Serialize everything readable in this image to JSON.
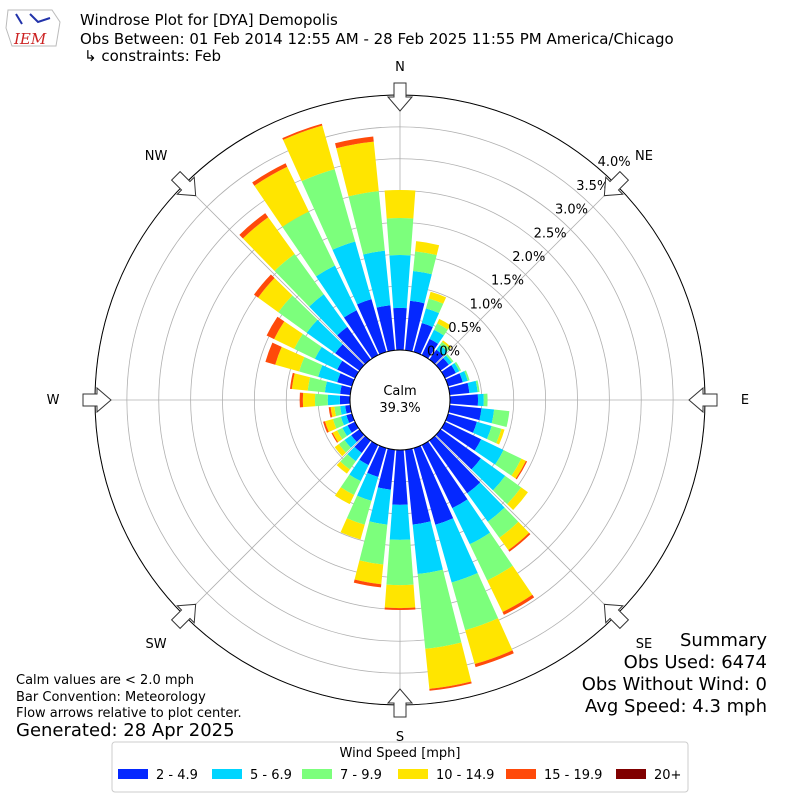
{
  "chart_data": {
    "type": "windrose",
    "logo": "IEM",
    "title": "Windrose Plot for [DYA] Demopolis",
    "subtitle": "Obs Between: 01 Feb 2014 12:55 AM - 28 Feb 2025 11:55 PM America/Chicago",
    "constraints": "↳ constraints: Feb",
    "compass": [
      "N",
      "NE",
      "E",
      "SE",
      "S",
      "SW",
      "W",
      "NW"
    ],
    "calm": {
      "label": "Calm",
      "value": 39.3,
      "value_label": "39.3%"
    },
    "rlim": [
      0,
      4
    ],
    "rticks": [
      {
        "value": 0,
        "label": "0.0%"
      },
      {
        "value": 0.5,
        "label": "0.5%"
      },
      {
        "value": 1,
        "label": "1.0%"
      },
      {
        "value": 1.5,
        "label": "1.5%"
      },
      {
        "value": 2,
        "label": "2.0%"
      },
      {
        "value": 2.5,
        "label": "2.5%"
      },
      {
        "value": 3,
        "label": "3.0%"
      },
      {
        "value": 3.5,
        "label": "3.5%"
      },
      {
        "value": 4,
        "label": "4.0%"
      }
    ],
    "x": [
      10,
      20,
      30,
      40,
      50,
      60,
      70,
      80,
      90,
      100,
      110,
      120,
      130,
      140,
      150,
      160,
      170,
      180,
      190,
      200,
      210,
      220,
      230,
      240,
      250,
      260,
      270,
      280,
      290,
      300,
      310,
      320,
      330,
      340,
      350,
      360
    ],
    "legend_title": "Wind Speed [mph]",
    "series": [
      {
        "name": "2 - 4.9",
        "color": "#0528ff",
        "values": [
          0.78,
          0.47,
          0.28,
          0.19,
          0.16,
          0.19,
          0.24,
          0.31,
          0.44,
          0.5,
          0.47,
          0.63,
          0.78,
          1.02,
          1.1,
          1.25,
          1.18,
          0.86,
          0.63,
          0.47,
          0.35,
          0.24,
          0.16,
          0.13,
          0.09,
          0.08,
          0.16,
          0.16,
          0.24,
          0.31,
          0.47,
          0.63,
          0.78,
          0.86,
          0.71,
          0.66
        ]
      },
      {
        "name": "5 - 6.9",
        "color": "#00d5ff",
        "values": [
          0.47,
          0.24,
          0.16,
          0.09,
          0.06,
          0.06,
          0.08,
          0.13,
          0.09,
          0.2,
          0.24,
          0.39,
          0.47,
          0.55,
          0.63,
          0.94,
          0.78,
          0.55,
          0.55,
          0.39,
          0.28,
          0.16,
          0.13,
          0.09,
          0.09,
          0.08,
          0.19,
          0.24,
          0.31,
          0.39,
          0.55,
          0.63,
          0.78,
          0.94,
          0.86,
          0.83
        ]
      },
      {
        "name": "7 - 9.9",
        "color": "#7cff7c",
        "values": [
          0.31,
          0.16,
          0.11,
          0.06,
          0.03,
          0.03,
          0.03,
          0.03,
          0.06,
          0.24,
          0.16,
          0.31,
          0.31,
          0.31,
          0.63,
          0.78,
          1.18,
          0.71,
          0.63,
          0.39,
          0.24,
          0.16,
          0.11,
          0.09,
          0.13,
          0.09,
          0.2,
          0.27,
          0.31,
          0.36,
          0.55,
          0.78,
          0.94,
          1.18,
          0.94,
          0.58
        ]
      },
      {
        "name": "10 - 14.9",
        "color": "#ffe500",
        "values": [
          0.16,
          0.11,
          0.08,
          0.03,
          0,
          0,
          0,
          0,
          0,
          0,
          0.05,
          0.08,
          0.13,
          0.24,
          0.55,
          0.55,
          0.63,
          0.36,
          0.31,
          0.24,
          0.16,
          0.08,
          0.08,
          0.08,
          0.13,
          0.06,
          0.19,
          0.25,
          0.39,
          0.35,
          0.39,
          0.71,
          0.78,
          0.71,
          0.78,
          0.44
        ]
      },
      {
        "name": "15 - 19.9",
        "color": "#ff4a0a",
        "values": [
          0,
          0,
          0,
          0,
          0,
          0,
          0,
          0,
          0,
          0,
          0,
          0.02,
          0,
          0.03,
          0.05,
          0.05,
          0.03,
          0.03,
          0.05,
          0,
          0,
          0,
          0,
          0.02,
          0.03,
          0.03,
          0.05,
          0.03,
          0.16,
          0.13,
          0.08,
          0.08,
          0.06,
          0.03,
          0.08,
          0
        ]
      },
      {
        "name": "20+",
        "color": "#800000",
        "values": [
          0,
          0,
          0,
          0,
          0,
          0,
          0,
          0,
          0,
          0,
          0,
          0,
          0,
          0,
          0,
          0,
          0,
          0,
          0,
          0,
          0,
          0,
          0,
          0,
          0,
          0,
          0,
          0,
          0,
          0,
          0,
          0,
          0,
          0,
          0,
          0
        ]
      }
    ],
    "summary": [
      "Summary",
      "Obs Used: 6474",
      "Obs Without Wind: 0",
      "Avg Speed: 4.3 mph"
    ],
    "notes": [
      "Calm values are < 2.0 mph",
      "Bar Convention: Meteorology",
      "Flow arrows relative to plot center."
    ],
    "generated": "Generated: 28 Apr 2025"
  }
}
